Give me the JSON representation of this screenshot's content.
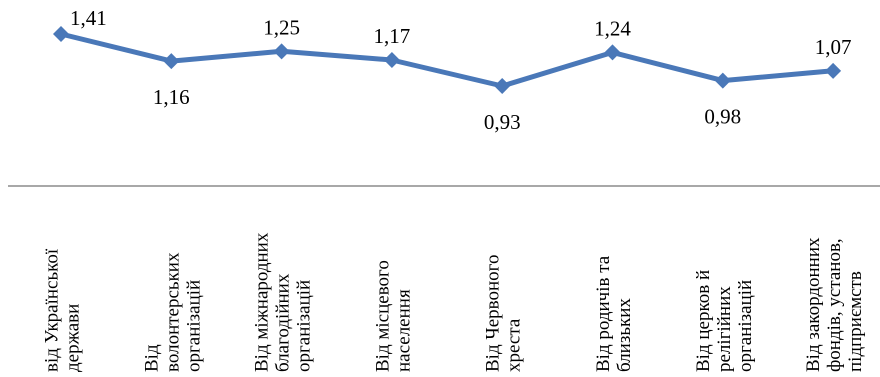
{
  "chart_data": {
    "type": "line",
    "categories": [
      [
        "від Української",
        "держави"
      ],
      [
        "Від",
        "волонтерських",
        "організацій"
      ],
      [
        "Від міжнародних",
        "благодійних",
        "організацій"
      ],
      [
        "Від місцевого",
        "населення"
      ],
      [
        "Від Червоного",
        "хреста"
      ],
      [
        "Від родичів та",
        "близьких"
      ],
      [
        "Від церков й",
        "релігійних",
        "організацій"
      ],
      [
        "Від закордонних",
        "фондів, установ,",
        "підприємств"
      ]
    ],
    "values": [
      1.41,
      1.16,
      1.25,
      1.17,
      0.93,
      1.24,
      0.98,
      1.07
    ],
    "value_labels": [
      "1,41",
      "1,16",
      "1,25",
      "1,17",
      "0,93",
      "1,24",
      "0,98",
      "1,07"
    ],
    "label_positions": [
      "right",
      "below",
      "above",
      "above",
      "below",
      "above",
      "below",
      "above"
    ],
    "line_color": "#4a78b8",
    "marker": "diamond",
    "axis_color": "#8c8c8c",
    "grid": false,
    "legend": "none"
  }
}
